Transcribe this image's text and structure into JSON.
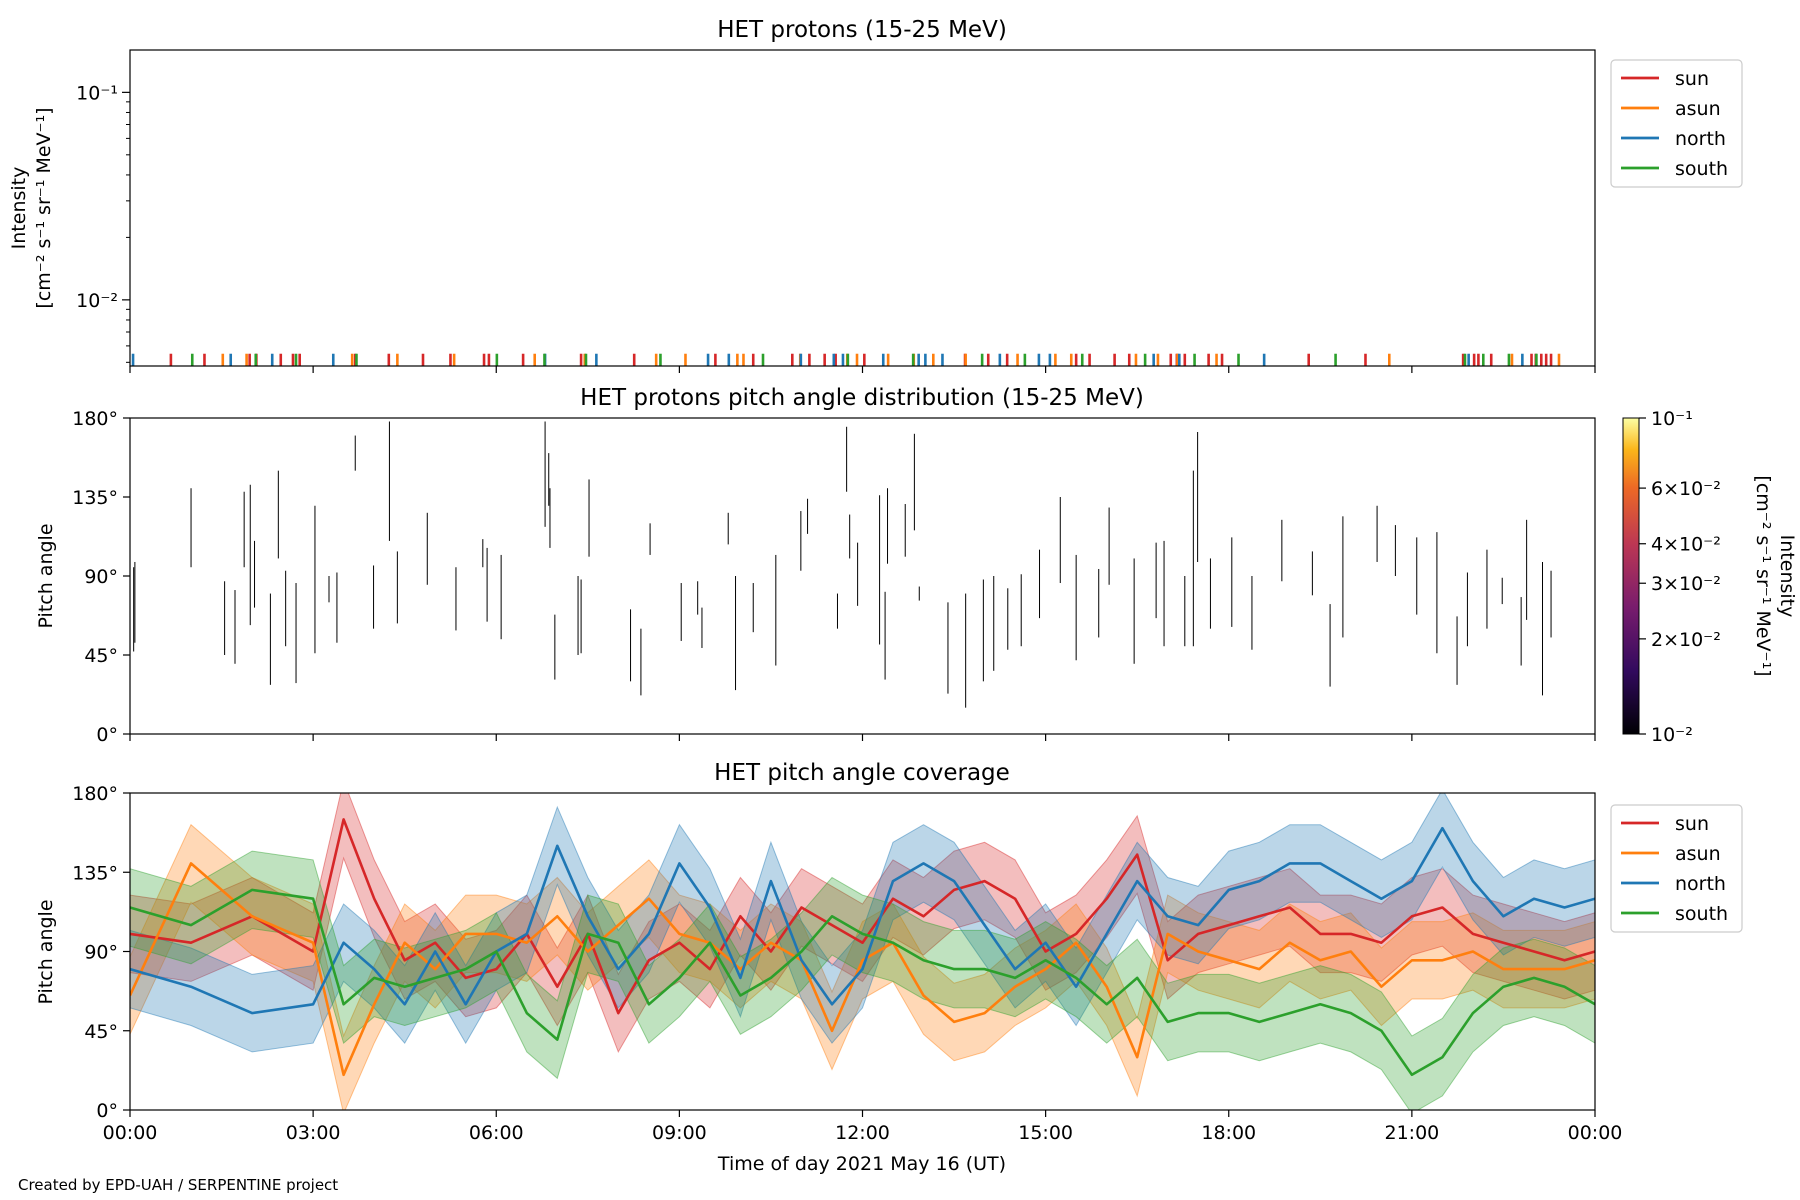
{
  "credit": "Created by EPD-UAH / SERPENTINE project",
  "colors": {
    "sun": "#d62728",
    "asun": "#ff7f0e",
    "north": "#1f77b4",
    "south": "#2ca02c"
  },
  "chart_data": [
    {
      "type": "line",
      "title": "HET protons (15-25 MeV)",
      "ylabel_lines": [
        "Intensity",
        "[cm⁻² s⁻¹ sr⁻¹ MeV⁻¹]"
      ],
      "yscale": "log",
      "ylim": [
        0.0048,
        0.16
      ],
      "yticks": [
        {
          "value": 0.1,
          "label": "10⁻¹"
        },
        {
          "value": 0.01,
          "label": "10⁻²"
        }
      ],
      "legend": {
        "placement": "upper-right-outside",
        "entries": [
          "sun",
          "asun",
          "north",
          "south"
        ]
      },
      "series": [
        {
          "name": "sun",
          "color": "#d62728",
          "x": [
            0.67,
            1.22,
            1.96,
            2.07,
            2.47,
            2.67,
            2.78,
            3.69,
            4.24,
            4.8,
            5.25,
            5.8,
            5.88,
            6.44,
            7.39,
            8.26,
            9.59,
            10.21,
            10.85,
            11.13,
            11.38,
            11.56,
            12.03,
            13.68,
            14.06,
            14.37,
            15.5,
            15.72,
            16.13,
            16.37,
            17.05,
            17.15,
            17.28,
            17.67,
            17.89,
            19.31,
            20.24,
            21.84,
            22.02,
            22.09,
            22.3,
            22.96,
            23.03,
            23.12,
            23.2,
            23.28
          ],
          "values": [
            0.0055,
            0.0055,
            0.0055,
            0.0055,
            0.0055,
            0.0055,
            0.0055,
            0.0055,
            0.0055,
            0.0055,
            0.0055,
            0.0055,
            0.0055,
            0.0055,
            0.0055,
            0.0055,
            0.0055,
            0.0055,
            0.0055,
            0.0055,
            0.0055,
            0.0055,
            0.0055,
            0.0055,
            0.0055,
            0.0055,
            0.0055,
            0.0055,
            0.0055,
            0.0055,
            0.0055,
            0.0055,
            0.0055,
            0.0055,
            0.0055,
            0.0055,
            0.0055,
            0.0055,
            0.0055,
            0.0055,
            0.0055,
            0.0055,
            0.0055,
            0.0055,
            0.0055,
            0.0055
          ]
        },
        {
          "name": "asun",
          "color": "#ff7f0e",
          "x": [
            1.52,
            1.91,
            3.64,
            4.38,
            5.31,
            6.63,
            7.45,
            8.62,
            9.1,
            9.95,
            10.05,
            10.98,
            11.75,
            11.91,
            12.42,
            12.84,
            13.16,
            13.69,
            14.54,
            15.16,
            15.42,
            16.48,
            16.84,
            17.16,
            17.8,
            20.63,
            22.64,
            23.41
          ],
          "values": [
            0.0055,
            0.0055,
            0.0055,
            0.0055,
            0.0055,
            0.0055,
            0.0055,
            0.0055,
            0.0055,
            0.0055,
            0.0055,
            0.0055,
            0.0055,
            0.0055,
            0.0055,
            0.0055,
            0.0055,
            0.0055,
            0.0055,
            0.0055,
            0.0055,
            0.0055,
            0.0055,
            0.0055,
            0.0055,
            0.0055,
            0.0055,
            0.0055
          ]
        },
        {
          "name": "north",
          "color": "#1f77b4",
          "x": [
            0.05,
            1.65,
            2.33,
            3.33,
            6.8,
            7.64,
            9.47,
            9.81,
            10.99,
            11.53,
            11.68,
            12.34,
            12.92,
            13.03,
            13.31,
            14.25,
            14.89,
            15.07,
            16.77,
            17.19,
            18.58,
            21.93,
            22.81
          ],
          "values": [
            0.0055,
            0.0055,
            0.0055,
            0.0055,
            0.0055,
            0.0055,
            0.0055,
            0.0055,
            0.0055,
            0.0055,
            0.0055,
            0.0055,
            0.0055,
            0.0055,
            0.0055,
            0.0055,
            0.0055,
            0.0055,
            0.0055,
            0.0055,
            0.0055,
            0.0055,
            0.0055
          ]
        },
        {
          "name": "south",
          "color": "#2ca02c",
          "x": [
            1.02,
            2.06,
            2.72,
            3.71,
            6.01,
            6.79,
            7.47,
            8.69,
            10.37,
            11.76,
            12.83,
            13.96,
            14.66,
            15.6,
            16.63,
            17.44,
            18.16,
            19.75,
            21.87,
            22.17,
            22.59,
            23.04
          ],
          "values": [
            0.0055,
            0.0055,
            0.0055,
            0.0055,
            0.0055,
            0.0055,
            0.0055,
            0.0055,
            0.0055,
            0.0055,
            0.0055,
            0.0055,
            0.0055,
            0.0055,
            0.0055,
            0.0055,
            0.0055,
            0.0055,
            0.0055,
            0.0055,
            0.0055,
            0.0055
          ]
        }
      ]
    },
    {
      "type": "heatmap",
      "title": "HET protons pitch angle distribution (15-25 MeV)",
      "ylabel": "Pitch angle",
      "ylim": [
        0,
        180
      ],
      "yticks": [
        "0°",
        "45°",
        "90°",
        "135°",
        "180°"
      ],
      "colorbar": {
        "label": "Intensity\n[cm⁻² s⁻¹ sr⁻¹ MeV⁻¹]",
        "scale": "log",
        "range": [
          0.01,
          0.1
        ],
        "ticks": [
          {
            "value": 0.1,
            "label": "10⁻¹"
          },
          {
            "value": 0.06,
            "label": "6×10⁻²"
          },
          {
            "value": 0.04,
            "label": "4×10⁻²"
          },
          {
            "value": 0.03,
            "label": "3×10⁻²"
          },
          {
            "value": 0.02,
            "label": "2×10⁻²"
          },
          {
            "value": 0.01,
            "label": "10⁻²"
          }
        ]
      },
      "segments": [
        [
          0.06,
          47,
          95
        ],
        [
          0.08,
          52,
          98
        ],
        [
          1.0,
          95,
          140
        ],
        [
          1.55,
          45,
          87
        ],
        [
          1.72,
          40,
          82
        ],
        [
          1.87,
          95,
          138
        ],
        [
          1.97,
          62,
          142
        ],
        [
          2.04,
          72,
          110
        ],
        [
          2.3,
          28,
          80
        ],
        [
          2.43,
          100,
          150
        ],
        [
          2.55,
          50,
          93
        ],
        [
          2.72,
          29,
          86
        ],
        [
          3.03,
          46,
          130
        ],
        [
          3.26,
          75,
          90
        ],
        [
          3.39,
          52,
          92
        ],
        [
          3.69,
          150,
          170
        ],
        [
          3.99,
          60,
          96
        ],
        [
          4.25,
          110,
          178
        ],
        [
          4.38,
          63,
          104
        ],
        [
          4.87,
          85,
          126
        ],
        [
          5.34,
          59,
          95
        ],
        [
          5.78,
          95,
          111
        ],
        [
          5.85,
          64,
          106
        ],
        [
          6.08,
          54,
          102
        ],
        [
          6.8,
          118,
          178
        ],
        [
          6.86,
          130,
          160
        ],
        [
          6.88,
          106,
          140
        ],
        [
          6.96,
          31,
          68
        ],
        [
          7.34,
          45,
          90
        ],
        [
          7.39,
          46,
          88
        ],
        [
          7.52,
          101,
          145
        ],
        [
          8.2,
          30,
          71
        ],
        [
          8.37,
          22,
          60
        ],
        [
          8.52,
          102,
          120
        ],
        [
          9.03,
          53,
          86
        ],
        [
          9.3,
          68,
          87
        ],
        [
          9.37,
          49,
          72
        ],
        [
          9.8,
          108,
          126
        ],
        [
          9.92,
          25,
          90
        ],
        [
          10.21,
          58,
          86
        ],
        [
          10.58,
          39,
          102
        ],
        [
          10.99,
          93,
          127
        ],
        [
          11.1,
          114,
          134
        ],
        [
          11.59,
          60,
          80
        ],
        [
          11.74,
          138,
          175
        ],
        [
          11.79,
          100,
          125
        ],
        [
          11.92,
          73,
          109
        ],
        [
          12.28,
          51,
          136
        ],
        [
          12.37,
          31,
          81
        ],
        [
          12.41,
          97,
          140
        ],
        [
          12.7,
          101,
          131
        ],
        [
          12.85,
          116,
          171
        ],
        [
          12.93,
          76,
          84
        ],
        [
          13.4,
          23,
          75
        ],
        [
          13.69,
          15,
          80
        ],
        [
          13.98,
          30,
          88
        ],
        [
          14.15,
          36,
          90
        ],
        [
          14.38,
          48,
          83
        ],
        [
          14.6,
          50,
          91
        ],
        [
          14.9,
          66,
          105
        ],
        [
          15.24,
          86,
          135
        ],
        [
          15.5,
          42,
          102
        ],
        [
          15.87,
          55,
          94
        ],
        [
          16.04,
          85,
          129
        ],
        [
          16.45,
          40,
          100
        ],
        [
          16.81,
          66,
          109
        ],
        [
          16.94,
          50,
          110
        ],
        [
          17.28,
          50,
          90
        ],
        [
          17.42,
          50,
          150
        ],
        [
          17.49,
          98,
          172
        ],
        [
          17.7,
          60,
          100
        ],
        [
          18.05,
          61,
          112
        ],
        [
          18.38,
          48,
          90
        ],
        [
          18.87,
          87,
          122
        ],
        [
          19.37,
          79,
          104
        ],
        [
          19.66,
          27,
          74
        ],
        [
          19.87,
          55,
          124
        ],
        [
          20.43,
          98,
          130
        ],
        [
          20.73,
          90,
          119
        ],
        [
          21.08,
          68,
          112
        ],
        [
          21.41,
          46,
          115
        ],
        [
          21.74,
          28,
          67
        ],
        [
          21.91,
          50,
          92
        ],
        [
          22.23,
          60,
          105
        ],
        [
          22.48,
          74,
          89
        ],
        [
          22.79,
          39,
          78
        ],
        [
          22.88,
          65,
          122
        ],
        [
          23.14,
          22,
          98
        ],
        [
          23.28,
          55,
          93
        ]
      ]
    },
    {
      "type": "line",
      "title": "HET pitch angle coverage",
      "ylabel": "Pitch angle",
      "xlabel": "Time of day 2021 May 16 (UT)",
      "ylim": [
        0,
        180
      ],
      "yticks": [
        "0°",
        "45°",
        "90°",
        "135°",
        "180°"
      ],
      "xlim": [
        0,
        24
      ],
      "xticks": [
        "00:00",
        "03:00",
        "06:00",
        "09:00",
        "12:00",
        "15:00",
        "18:00",
        "21:00",
        "00:00"
      ],
      "band_half_width": 22,
      "legend": {
        "placement": "upper-right-outside",
        "entries": [
          "sun",
          "asun",
          "north",
          "south"
        ]
      },
      "x": [
        0,
        1,
        2,
        3,
        3.5,
        4,
        4.5,
        5,
        5.5,
        6,
        6.5,
        7,
        7.5,
        8,
        8.5,
        9,
        9.5,
        10,
        10.5,
        11,
        11.5,
        12,
        12.5,
        13,
        13.5,
        14,
        14.5,
        15,
        15.5,
        16,
        16.5,
        17,
        17.5,
        18,
        18.5,
        19,
        19.5,
        20,
        20.5,
        21,
        21.5,
        22,
        22.5,
        23,
        23.5,
        24
      ],
      "series": [
        {
          "name": "sun",
          "color": "#d62728",
          "values": [
            100,
            95,
            110,
            90,
            165,
            120,
            85,
            95,
            75,
            80,
            100,
            70,
            100,
            55,
            85,
            95,
            80,
            110,
            90,
            115,
            105,
            95,
            120,
            110,
            125,
            130,
            120,
            90,
            100,
            120,
            145,
            85,
            100,
            105,
            110,
            115,
            100,
            100,
            95,
            110,
            115,
            100,
            95,
            90,
            85,
            90
          ]
        },
        {
          "name": "asun",
          "color": "#ff7f0e",
          "values": [
            65,
            140,
            110,
            95,
            20,
            60,
            95,
            80,
            100,
            100,
            95,
            110,
            90,
            105,
            120,
            100,
            95,
            80,
            95,
            85,
            45,
            85,
            95,
            65,
            50,
            55,
            70,
            80,
            95,
            70,
            30,
            100,
            90,
            85,
            80,
            95,
            85,
            90,
            70,
            85,
            85,
            90,
            80,
            80,
            80,
            85
          ]
        },
        {
          "name": "north",
          "color": "#1f77b4",
          "values": [
            80,
            70,
            55,
            60,
            95,
            80,
            60,
            90,
            60,
            90,
            100,
            150,
            110,
            80,
            100,
            140,
            115,
            75,
            130,
            85,
            60,
            80,
            130,
            140,
            130,
            105,
            80,
            95,
            70,
            100,
            130,
            110,
            105,
            125,
            130,
            140,
            140,
            130,
            120,
            130,
            160,
            130,
            110,
            120,
            115,
            120
          ]
        },
        {
          "name": "south",
          "color": "#2ca02c",
          "values": [
            115,
            105,
            125,
            120,
            60,
            75,
            70,
            75,
            80,
            90,
            55,
            40,
            100,
            95,
            60,
            75,
            95,
            65,
            75,
            90,
            110,
            100,
            95,
            85,
            80,
            80,
            75,
            85,
            75,
            60,
            75,
            50,
            55,
            55,
            50,
            55,
            60,
            55,
            45,
            20,
            30,
            55,
            70,
            75,
            70,
            60
          ]
        }
      ]
    }
  ]
}
